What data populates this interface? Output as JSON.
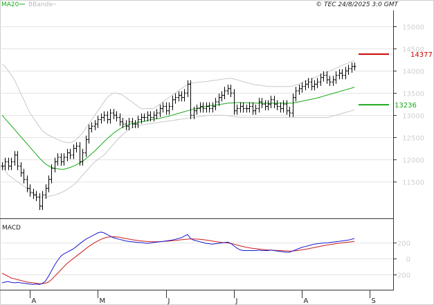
{
  "header": {
    "ma_label": "MA20",
    "bands_label": "BBands",
    "source": "© TEC 24/8/2025 3:0 GMT"
  },
  "colors": {
    "price": "#000000",
    "ma": "#18a818",
    "bands": "#c8c8c8",
    "resistance": "#cc0000",
    "support": "#18a818",
    "macd": "#1a1acc",
    "signal": "#cc1a1a",
    "grid": "#e4e4e4"
  },
  "chart_data": [
    {
      "type": "line",
      "name": "price-panel",
      "y_ticks": [
        "11500",
        "12000",
        "12500",
        "13000",
        "13500",
        "14000",
        "14500",
        "15000"
      ],
      "y_tick_values": [
        11500,
        12000,
        12500,
        13000,
        13500,
        14000,
        14500,
        15000
      ],
      "ylim": [
        10750,
        15350
      ],
      "x_ticks": [
        "A",
        "M",
        "J",
        "J",
        "A",
        "S"
      ],
      "x_tick_index": [
        9,
        31,
        53,
        75,
        97,
        119
      ],
      "bar_count": 115,
      "bars_closes": [
        11850,
        11950,
        11850,
        11950,
        12100,
        11850,
        11700,
        11550,
        11350,
        11250,
        11200,
        11150,
        10950,
        11200,
        11350,
        11550,
        11800,
        11950,
        12050,
        11950,
        12050,
        12150,
        12100,
        12250,
        12300,
        11950,
        12150,
        12450,
        12700,
        12750,
        12800,
        12900,
        12950,
        13000,
        12900,
        13050,
        13000,
        12950,
        12850,
        12800,
        12750,
        12850,
        12800,
        12800,
        12900,
        12950,
        12950,
        13000,
        12950,
        13000,
        13050,
        13150,
        13200,
        13100,
        13200,
        13350,
        13400,
        13450,
        13400,
        13500,
        13700,
        13000,
        13100,
        13150,
        13200,
        13150,
        13200,
        13150,
        13200,
        13300,
        13400,
        13450,
        13550,
        13600,
        13500,
        13100,
        13150,
        13200,
        13150,
        13150,
        13200,
        13100,
        13150,
        13300,
        13250,
        13200,
        13250,
        13350,
        13250,
        13200,
        13150,
        13250,
        13100,
        13050,
        13400,
        13550,
        13600,
        13650,
        13700,
        13750,
        13650,
        13700,
        13750,
        13850,
        13900,
        13800,
        13750,
        13800,
        13900,
        13950,
        13900,
        14000,
        14050,
        14100,
        14100
      ],
      "ma20": [
        13000,
        12920,
        12840,
        12760,
        12680,
        12600,
        12520,
        12440,
        12360,
        12280,
        12200,
        12120,
        12040,
        11970,
        11900,
        11860,
        11820,
        11800,
        11790,
        11780,
        11780,
        11800,
        11820,
        11850,
        11880,
        11920,
        11960,
        12010,
        12070,
        12130,
        12190,
        12260,
        12330,
        12400,
        12470,
        12530,
        12590,
        12640,
        12690,
        12730,
        12760,
        12790,
        12810,
        12830,
        12840,
        12850,
        12860,
        12880,
        12900,
        12910,
        12920,
        12930,
        12950,
        12960,
        12980,
        13000,
        13020,
        13040,
        13060,
        13080,
        13100,
        13120,
        13140,
        13150,
        13170,
        13180,
        13200,
        13210,
        13220,
        13230,
        13240,
        13250,
        13260,
        13270,
        13275,
        13280,
        13285,
        13285,
        13280,
        13280,
        13280,
        13275,
        13275,
        13270,
        13270,
        13270,
        13270,
        13270,
        13270,
        13270,
        13270,
        13270,
        13270,
        13270,
        13275,
        13285,
        13300,
        13315,
        13330,
        13345,
        13360,
        13375,
        13390,
        13410,
        13430,
        13450,
        13470,
        13490,
        13510,
        13530,
        13550,
        13570,
        13590,
        13610,
        13630
      ],
      "bb_upper": [
        14150,
        14100,
        14000,
        13900,
        13800,
        13650,
        13500,
        13350,
        13200,
        13050,
        12950,
        12850,
        12750,
        12650,
        12600,
        12550,
        12520,
        12480,
        12450,
        12420,
        12400,
        12380,
        12380,
        12400,
        12450,
        12520,
        12600,
        12700,
        12800,
        12900,
        13000,
        13100,
        13200,
        13300,
        13400,
        13450,
        13500,
        13500,
        13480,
        13450,
        13400,
        13350,
        13300,
        13250,
        13200,
        13150,
        13150,
        13150,
        13150,
        13150,
        13200,
        13250,
        13300,
        13350,
        13400,
        13450,
        13500,
        13550,
        13600,
        13650,
        13700,
        13720,
        13730,
        13740,
        13750,
        13750,
        13760,
        13770,
        13780,
        13790,
        13800,
        13810,
        13820,
        13830,
        13830,
        13820,
        13800,
        13780,
        13760,
        13740,
        13720,
        13700,
        13690,
        13680,
        13670,
        13660,
        13650,
        13650,
        13650,
        13650,
        13650,
        13650,
        13650,
        13650,
        13660,
        13680,
        13700,
        13730,
        13760,
        13790,
        13820,
        13850,
        13880,
        13910,
        13940,
        13970,
        14000,
        14030,
        14060,
        14090,
        14120,
        14150,
        14180,
        14210,
        14240
      ],
      "bb_lower": [
        11850,
        11750,
        11650,
        11600,
        11550,
        11500,
        11450,
        11400,
        11350,
        11300,
        11250,
        11200,
        11150,
        11150,
        11150,
        11170,
        11180,
        11200,
        11220,
        11250,
        11280,
        11320,
        11370,
        11420,
        11480,
        11560,
        11640,
        11720,
        11800,
        11880,
        11950,
        12000,
        12050,
        12100,
        12180,
        12260,
        12340,
        12420,
        12500,
        12560,
        12620,
        12680,
        12720,
        12740,
        12760,
        12780,
        12790,
        12800,
        12810,
        12820,
        12830,
        12840,
        12850,
        12860,
        12870,
        12880,
        12890,
        12900,
        12910,
        12920,
        12930,
        12940,
        12950,
        12960,
        12970,
        12980,
        12990,
        13000,
        13000,
        13000,
        13000,
        13000,
        13000,
        12990,
        12980,
        12970,
        12960,
        12950,
        12950,
        12950,
        12950,
        12950,
        12950,
        12950,
        12950,
        12950,
        12950,
        12950,
        12950,
        12950,
        12950,
        12950,
        12950,
        12950,
        12950,
        12950,
        12950,
        12950,
        12950,
        12950,
        12950,
        12950,
        12950,
        12950,
        12950,
        12950,
        12960,
        12980,
        13000,
        13020,
        13040,
        13060,
        13080,
        13100,
        13120
      ],
      "resistance": {
        "value": 14377,
        "label": "14377"
      },
      "support": {
        "value": 13236,
        "label": "13236"
      }
    },
    {
      "type": "line",
      "name": "macd-panel",
      "title": "MACD",
      "y_ticks": [
        "200",
        "0",
        "-200"
      ],
      "y_tick_values": [
        200,
        0,
        -200
      ],
      "ylim": [
        -360,
        440
      ],
      "series": [
        {
          "name": "MACD",
          "values": [
            -300,
            -290,
            -285,
            -295,
            -300,
            -295,
            -300,
            -305,
            -310,
            -315,
            -320,
            -315,
            -320,
            -310,
            -280,
            -220,
            -150,
            -80,
            -20,
            30,
            60,
            80,
            100,
            120,
            150,
            180,
            210,
            240,
            260,
            280,
            300,
            320,
            330,
            320,
            300,
            280,
            260,
            250,
            240,
            230,
            220,
            215,
            210,
            205,
            200,
            200,
            195,
            190,
            195,
            200,
            205,
            210,
            215,
            220,
            225,
            230,
            240,
            250,
            260,
            280,
            300,
            250,
            230,
            220,
            210,
            200,
            190,
            185,
            180,
            185,
            190,
            195,
            200,
            205,
            190,
            160,
            130,
            110,
            100,
            100,
            100,
            100,
            100,
            105,
            100,
            100,
            100,
            105,
            100,
            95,
            90,
            85,
            80,
            80,
            95,
            110,
            125,
            140,
            150,
            160,
            170,
            180,
            185,
            190,
            195,
            195,
            200,
            205,
            210,
            215,
            220,
            225,
            230,
            240,
            250
          ]
        },
        {
          "name": "Signal",
          "values": [
            -180,
            -200,
            -220,
            -240,
            -250,
            -260,
            -270,
            -280,
            -290,
            -295,
            -300,
            -305,
            -310,
            -310,
            -305,
            -290,
            -260,
            -220,
            -180,
            -140,
            -100,
            -60,
            -30,
            0,
            30,
            60,
            90,
            120,
            150,
            175,
            200,
            220,
            240,
            255,
            265,
            270,
            272,
            270,
            265,
            258,
            250,
            243,
            236,
            230,
            225,
            220,
            216,
            213,
            211,
            210,
            210,
            211,
            213,
            216,
            219,
            222,
            226,
            230,
            234,
            238,
            242,
            245,
            245,
            243,
            240,
            236,
            231,
            225,
            219,
            213,
            207,
            202,
            198,
            195,
            190,
            180,
            170,
            160,
            150,
            142,
            135,
            129,
            124,
            119,
            115,
            111,
            108,
            106,
            104,
            102,
            100,
            98,
            96,
            94,
            95,
            98,
            103,
            109,
            115,
            122,
            130,
            138,
            146,
            154,
            161,
            168,
            174,
            180,
            186,
            191,
            196,
            200,
            204,
            209,
            214
          ]
        }
      ]
    }
  ]
}
